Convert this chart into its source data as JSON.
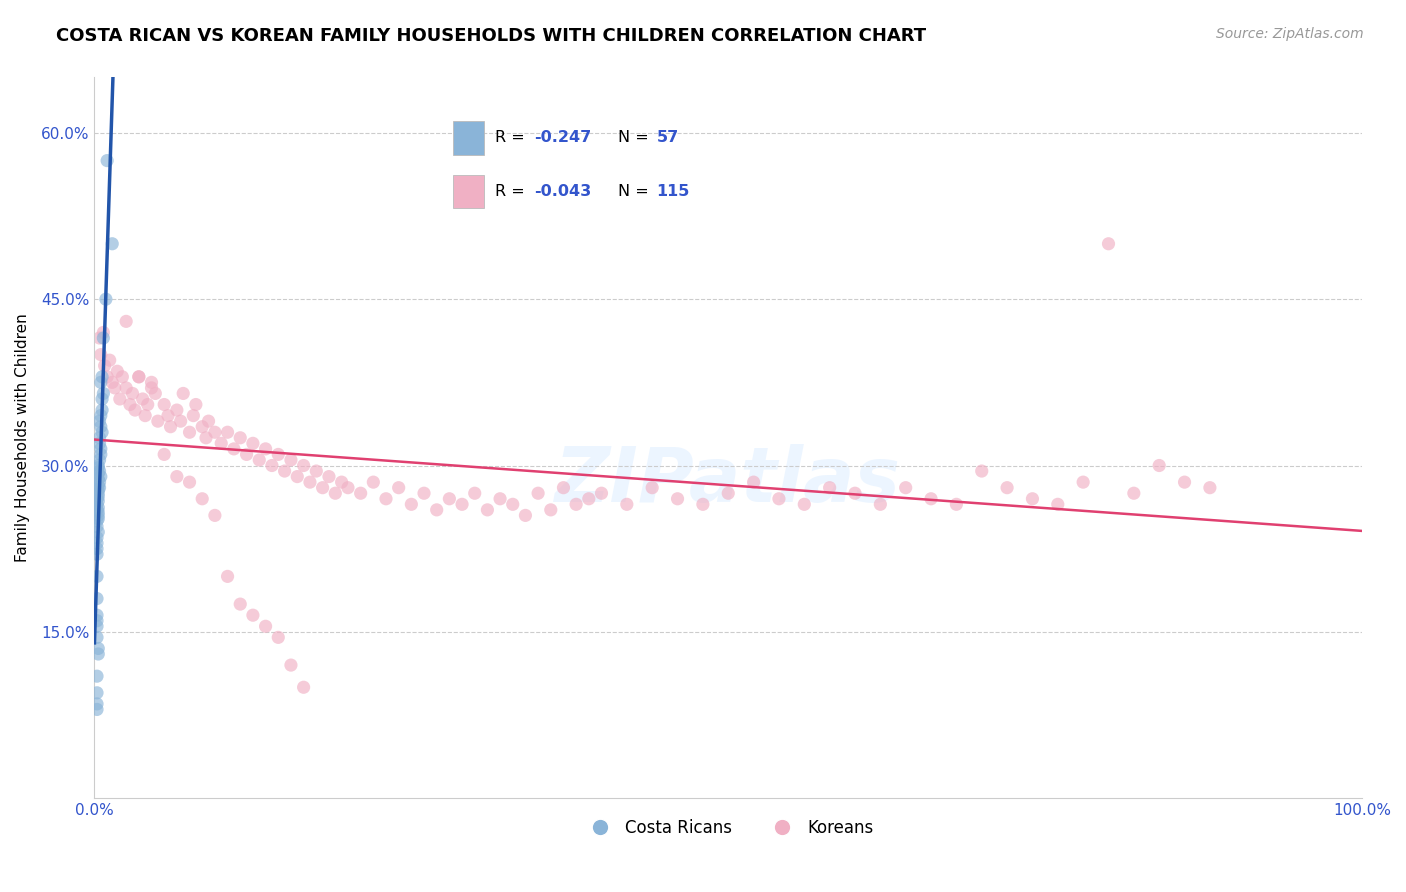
{
  "title": "COSTA RICAN VS KOREAN FAMILY HOUSEHOLDS WITH CHILDREN CORRELATION CHART",
  "source": "Source: ZipAtlas.com",
  "ylabel": "Family Households with Children",
  "xlim": [
    0.0,
    1.0
  ],
  "ylim": [
    0.0,
    0.65
  ],
  "ytick_vals": [
    0.0,
    0.15,
    0.3,
    0.45,
    0.6
  ],
  "ytick_labels": [
    "",
    "15.0%",
    "30.0%",
    "45.0%",
    "60.0%"
  ],
  "xtick_vals": [
    0.0,
    0.25,
    0.5,
    0.75,
    1.0
  ],
  "xtick_labels": [
    "0.0%",
    "",
    "",
    "",
    "100.0%"
  ],
  "legend_r_blue": "-0.247",
  "legend_n_blue": "57",
  "legend_r_pink": "-0.043",
  "legend_n_pink": "115",
  "blue_scatter_color": "#8ab4d8",
  "pink_scatter_color": "#f0b0c4",
  "blue_line_color": "#2255aa",
  "pink_line_color": "#e04070",
  "dashed_line_color": "#99bbdd",
  "watermark": "ZIPatlas",
  "tick_label_color": "#3355cc",
  "grid_color": "#cccccc",
  "title_fontsize": 13,
  "source_fontsize": 10,
  "axis_fontsize": 11,
  "costa_rican_x": [
    0.01,
    0.014,
    0.009,
    0.007,
    0.006,
    0.005,
    0.007,
    0.006,
    0.006,
    0.005,
    0.004,
    0.005,
    0.006,
    0.004,
    0.004,
    0.005,
    0.005,
    0.004,
    0.003,
    0.003,
    0.004,
    0.003,
    0.005,
    0.003,
    0.004,
    0.003,
    0.004,
    0.003,
    0.003,
    0.003,
    0.002,
    0.003,
    0.002,
    0.003,
    0.002,
    0.003,
    0.003,
    0.003,
    0.002,
    0.002,
    0.003,
    0.002,
    0.002,
    0.002,
    0.002,
    0.002,
    0.002,
    0.002,
    0.002,
    0.002,
    0.002,
    0.003,
    0.003,
    0.002,
    0.002,
    0.002,
    0.002
  ],
  "costa_rican_y": [
    0.575,
    0.5,
    0.45,
    0.415,
    0.38,
    0.375,
    0.365,
    0.36,
    0.35,
    0.345,
    0.34,
    0.335,
    0.33,
    0.325,
    0.32,
    0.315,
    0.31,
    0.305,
    0.3,
    0.298,
    0.295,
    0.293,
    0.29,
    0.288,
    0.285,
    0.282,
    0.28,
    0.278,
    0.275,
    0.272,
    0.27,
    0.268,
    0.265,
    0.262,
    0.26,
    0.258,
    0.255,
    0.252,
    0.25,
    0.245,
    0.24,
    0.235,
    0.23,
    0.225,
    0.22,
    0.2,
    0.18,
    0.165,
    0.16,
    0.155,
    0.145,
    0.135,
    0.13,
    0.11,
    0.095,
    0.085,
    0.08
  ],
  "korean_x": [
    0.004,
    0.005,
    0.007,
    0.008,
    0.01,
    0.012,
    0.014,
    0.016,
    0.018,
    0.02,
    0.022,
    0.025,
    0.028,
    0.03,
    0.032,
    0.035,
    0.038,
    0.04,
    0.042,
    0.045,
    0.048,
    0.05,
    0.055,
    0.058,
    0.06,
    0.065,
    0.068,
    0.07,
    0.075,
    0.078,
    0.08,
    0.085,
    0.088,
    0.09,
    0.095,
    0.1,
    0.105,
    0.11,
    0.115,
    0.12,
    0.125,
    0.13,
    0.135,
    0.14,
    0.145,
    0.15,
    0.155,
    0.16,
    0.165,
    0.17,
    0.175,
    0.18,
    0.185,
    0.19,
    0.195,
    0.2,
    0.21,
    0.22,
    0.23,
    0.24,
    0.25,
    0.26,
    0.27,
    0.28,
    0.29,
    0.3,
    0.31,
    0.32,
    0.33,
    0.34,
    0.35,
    0.36,
    0.37,
    0.38,
    0.39,
    0.4,
    0.42,
    0.44,
    0.46,
    0.48,
    0.5,
    0.52,
    0.54,
    0.56,
    0.58,
    0.6,
    0.62,
    0.64,
    0.66,
    0.68,
    0.7,
    0.72,
    0.74,
    0.76,
    0.78,
    0.8,
    0.82,
    0.84,
    0.86,
    0.88,
    0.025,
    0.035,
    0.045,
    0.055,
    0.065,
    0.075,
    0.085,
    0.095,
    0.105,
    0.115,
    0.125,
    0.135,
    0.145,
    0.155,
    0.165
  ],
  "korean_y": [
    0.415,
    0.4,
    0.42,
    0.39,
    0.38,
    0.395,
    0.375,
    0.37,
    0.385,
    0.36,
    0.38,
    0.37,
    0.355,
    0.365,
    0.35,
    0.38,
    0.36,
    0.345,
    0.355,
    0.375,
    0.365,
    0.34,
    0.355,
    0.345,
    0.335,
    0.35,
    0.34,
    0.365,
    0.33,
    0.345,
    0.355,
    0.335,
    0.325,
    0.34,
    0.33,
    0.32,
    0.33,
    0.315,
    0.325,
    0.31,
    0.32,
    0.305,
    0.315,
    0.3,
    0.31,
    0.295,
    0.305,
    0.29,
    0.3,
    0.285,
    0.295,
    0.28,
    0.29,
    0.275,
    0.285,
    0.28,
    0.275,
    0.285,
    0.27,
    0.28,
    0.265,
    0.275,
    0.26,
    0.27,
    0.265,
    0.275,
    0.26,
    0.27,
    0.265,
    0.255,
    0.275,
    0.26,
    0.28,
    0.265,
    0.27,
    0.275,
    0.265,
    0.28,
    0.27,
    0.265,
    0.275,
    0.285,
    0.27,
    0.265,
    0.28,
    0.275,
    0.265,
    0.28,
    0.27,
    0.265,
    0.295,
    0.28,
    0.27,
    0.265,
    0.285,
    0.5,
    0.275,
    0.3,
    0.285,
    0.28,
    0.43,
    0.38,
    0.37,
    0.31,
    0.29,
    0.285,
    0.27,
    0.255,
    0.2,
    0.175,
    0.165,
    0.155,
    0.145,
    0.12,
    0.1
  ]
}
